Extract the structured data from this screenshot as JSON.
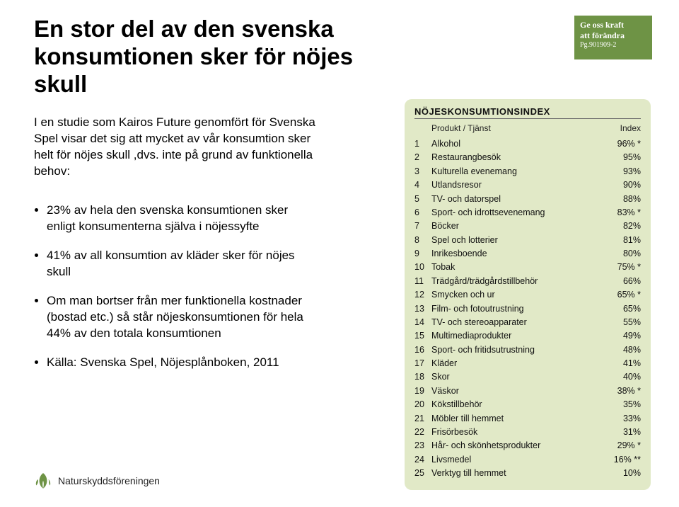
{
  "title": "En stor del av den svenska konsumtionen sker för nöjes skull",
  "intro": "I en studie som Kairos Future genomfört för Svenska Spel visar det sig att mycket av vår konsumtion sker helt för nöjes skull ,dvs. inte på grund av funktionella behov:",
  "bullets": [
    "23% av hela den svenska konsumtionen sker enligt konsumenterna själva i nöjessyfte",
    "41% av all konsumtion av kläder sker för nöjes skull",
    "Om man bortser från mer funktionella kostnader (bostad etc.) så står nöjeskonsumtionen för hela 44% av den totala konsumtionen",
    "Källa: Svenska Spel, Nöjesplånboken, 2011"
  ],
  "topRightLogo": {
    "line1": "Ge oss kraft",
    "line2": "att förändra",
    "pg": "Pg.901909-2",
    "bg": "#6e9345",
    "fg": "#ffffff"
  },
  "card": {
    "title": "NÖJESKONSUMTIONSINDEX",
    "col1": "Produkt / Tjänst",
    "col2": "Index",
    "bg": "#e1e9c7",
    "rows": [
      {
        "n": "1",
        "p": "Alkohol",
        "i": "96% *"
      },
      {
        "n": "2",
        "p": "Restaurangbesök",
        "i": "95%"
      },
      {
        "n": "3",
        "p": "Kulturella evenemang",
        "i": "93%"
      },
      {
        "n": "4",
        "p": "Utlandsresor",
        "i": "90%"
      },
      {
        "n": "5",
        "p": "TV- och datorspel",
        "i": "88%"
      },
      {
        "n": "6",
        "p": "Sport- och idrottsevenemang",
        "i": "83% *"
      },
      {
        "n": "7",
        "p": "Böcker",
        "i": "82%"
      },
      {
        "n": "8",
        "p": "Spel och lotterier",
        "i": "81%"
      },
      {
        "n": "9",
        "p": "Inrikesboende",
        "i": "80%"
      },
      {
        "n": "10",
        "p": "Tobak",
        "i": "75% *"
      },
      {
        "n": "11",
        "p": "Trädgård/trädgårdstillbehör",
        "i": "66%"
      },
      {
        "n": "12",
        "p": "Smycken och ur",
        "i": "65% *"
      },
      {
        "n": "13",
        "p": "Film- och fotoutrustning",
        "i": "65%"
      },
      {
        "n": "14",
        "p": "TV- och stereoapparater",
        "i": "55%"
      },
      {
        "n": "15",
        "p": "Multimediaprodukter",
        "i": "49%"
      },
      {
        "n": "16",
        "p": "Sport- och fritidsutrustning",
        "i": "48%"
      },
      {
        "n": "17",
        "p": "Kläder",
        "i": "41%"
      },
      {
        "n": "18",
        "p": "Skor",
        "i": "40%"
      },
      {
        "n": "19",
        "p": "Väskor",
        "i": "38% *"
      },
      {
        "n": "20",
        "p": "Kökstillbehör",
        "i": "35%"
      },
      {
        "n": "21",
        "p": "Möbler till hemmet",
        "i": "33%"
      },
      {
        "n": "22",
        "p": "Frisörbesök",
        "i": "31%"
      },
      {
        "n": "23",
        "p": "Hår- och skönhetsprodukter",
        "i": "29% *"
      },
      {
        "n": "24",
        "p": "Livsmedel",
        "i": "16% **"
      },
      {
        "n": "25",
        "p": "Verktyg till hemmet",
        "i": "10%"
      }
    ]
  },
  "bottomLogo": {
    "text": "Naturskyddsföreningen",
    "iconColor": "#6e9345"
  }
}
